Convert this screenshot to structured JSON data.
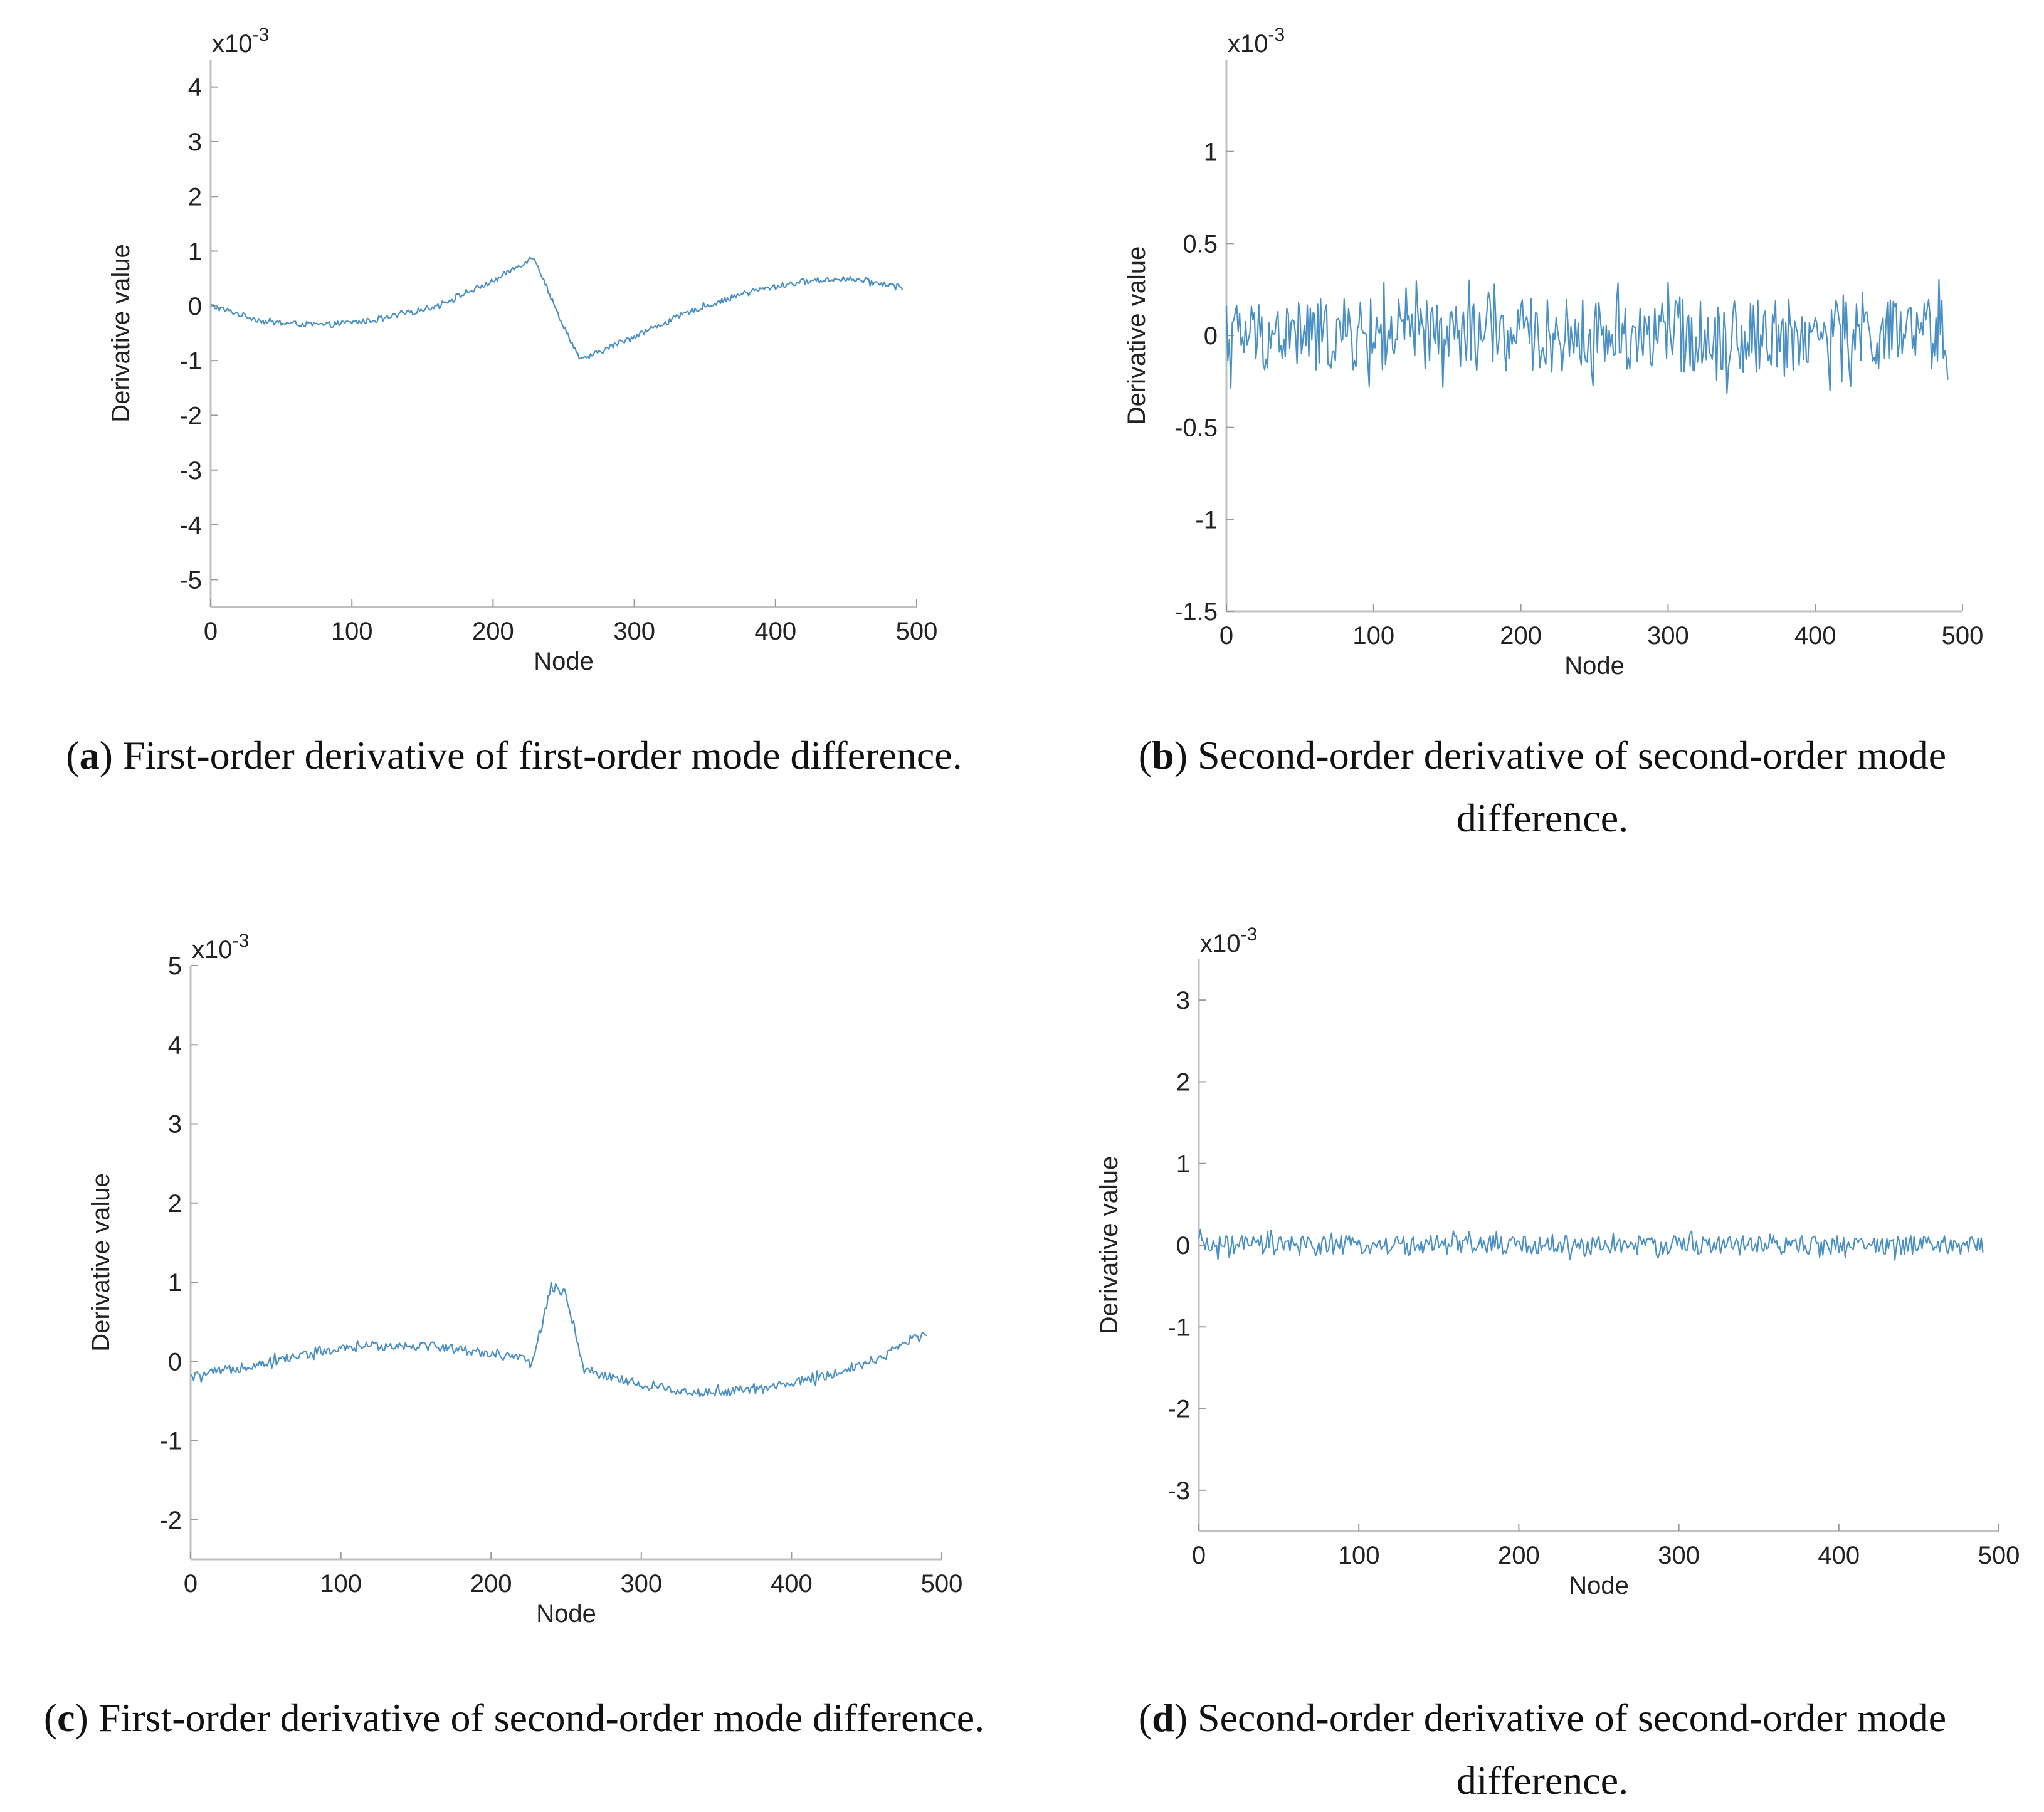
{
  "chart_data": [
    {
      "id": "a",
      "type": "line",
      "panel_label": "a",
      "caption": "First-order derivative of first-order mode difference.",
      "xlabel": "Node",
      "ylabel": "Derivative value",
      "exponent": "x10",
      "exponent_power": "-3",
      "xlim": [
        0,
        500
      ],
      "ylim": [
        -5.5,
        4.5
      ],
      "xticks": [
        0,
        100,
        200,
        300,
        400,
        500
      ],
      "xtick_labels": [
        "0",
        "100",
        "200",
        "300",
        "400",
        "500"
      ],
      "yticks": [
        4,
        3,
        2,
        1,
        0,
        -1,
        -2,
        -3,
        -4,
        -5
      ],
      "ytick_labels": [
        "4",
        "3",
        "2",
        "1",
        "0",
        "-1",
        "-2",
        "-3",
        "-4",
        "-5"
      ],
      "line_color": "#4a90c4",
      "series": [
        {
          "name": "derivative",
          "x": [
            0,
            40,
            80,
            120,
            160,
            200,
            229,
            245,
            262,
            300,
            340,
            380,
            420,
            450,
            490
          ],
          "values": [
            0.0,
            -0.3,
            -0.35,
            -0.25,
            0.0,
            0.45,
            0.9,
            -0.1,
            -1.0,
            -0.55,
            -0.1,
            0.25,
            0.45,
            0.5,
            0.35
          ],
          "noise": 0.05
        }
      ]
    },
    {
      "id": "b",
      "type": "line",
      "panel_label": "b",
      "caption": "Second-order derivative of second-order mode difference.",
      "xlabel": "Node",
      "ylabel": "Derivative value",
      "exponent": "x10",
      "exponent_power": "-3",
      "xlim": [
        0,
        500
      ],
      "ylim": [
        -1.5,
        1.5
      ],
      "xticks": [
        0,
        100,
        200,
        300,
        400,
        500
      ],
      "xtick_labels": [
        "0",
        "100",
        "200",
        "300",
        "400",
        "500"
      ],
      "yticks": [
        1,
        0.5,
        0,
        -0.5,
        -1,
        -1.5
      ],
      "ytick_labels": [
        "1",
        "0.5",
        "0",
        "-0.5",
        "-1",
        "-1.5"
      ],
      "line_color": "#4a90c4",
      "series": [
        {
          "name": "derivative",
          "x": [
            0,
            100,
            200,
            300,
            400,
            490
          ],
          "values": [
            0,
            0,
            0,
            0,
            0,
            0
          ],
          "noise": 0.2
        }
      ]
    },
    {
      "id": "c",
      "type": "line",
      "panel_label": "c",
      "caption": "First-order derivative of second-order mode difference.",
      "xlabel": "Node",
      "ylabel": "Derivative value",
      "exponent": "x10",
      "exponent_power": "-3",
      "xlim": [
        0,
        500
      ],
      "ylim": [
        -2.5,
        5
      ],
      "xticks": [
        0,
        100,
        200,
        300,
        400,
        500
      ],
      "xtick_labels": [
        "0",
        "100",
        "200",
        "300",
        "400",
        "500"
      ],
      "yticks": [
        5,
        4,
        3,
        2,
        1,
        0,
        -1,
        -2
      ],
      "ytick_labels": [
        "5",
        "4",
        "3",
        "2",
        "1",
        "0",
        "-1",
        "-2"
      ],
      "line_color": "#4a90c4",
      "series": [
        {
          "name": "derivative",
          "x": [
            0,
            40,
            80,
            120,
            160,
            200,
            228,
            240,
            250,
            262,
            300,
            340,
            380,
            420,
            460,
            490
          ],
          "values": [
            -0.2,
            -0.05,
            0.1,
            0.2,
            0.2,
            0.1,
            0.0,
            0.95,
            0.85,
            -0.1,
            -0.3,
            -0.4,
            -0.35,
            -0.2,
            0.05,
            0.4
          ],
          "noise": 0.06
        }
      ]
    },
    {
      "id": "d",
      "type": "line",
      "panel_label": "d",
      "caption": "Second-order derivative of second-order mode difference.",
      "xlabel": "Node",
      "ylabel": "Derivative value",
      "exponent": "x10",
      "exponent_power": "-3",
      "xlim": [
        0,
        500
      ],
      "ylim": [
        -3.5,
        3.5
      ],
      "xticks": [
        0,
        100,
        200,
        300,
        400,
        500
      ],
      "xtick_labels": [
        "0",
        "100",
        "200",
        "300",
        "400",
        "500"
      ],
      "yticks": [
        3,
        2,
        1,
        0,
        -1,
        -2,
        -3
      ],
      "ytick_labels": [
        "3",
        "2",
        "1",
        "0",
        "-1",
        "-2",
        "-3"
      ],
      "line_color": "#4a90c4",
      "series": [
        {
          "name": "derivative",
          "x": [
            0,
            100,
            200,
            300,
            400,
            490
          ],
          "values": [
            0,
            0,
            0,
            0,
            0,
            0
          ],
          "noise": 0.12
        }
      ]
    }
  ]
}
